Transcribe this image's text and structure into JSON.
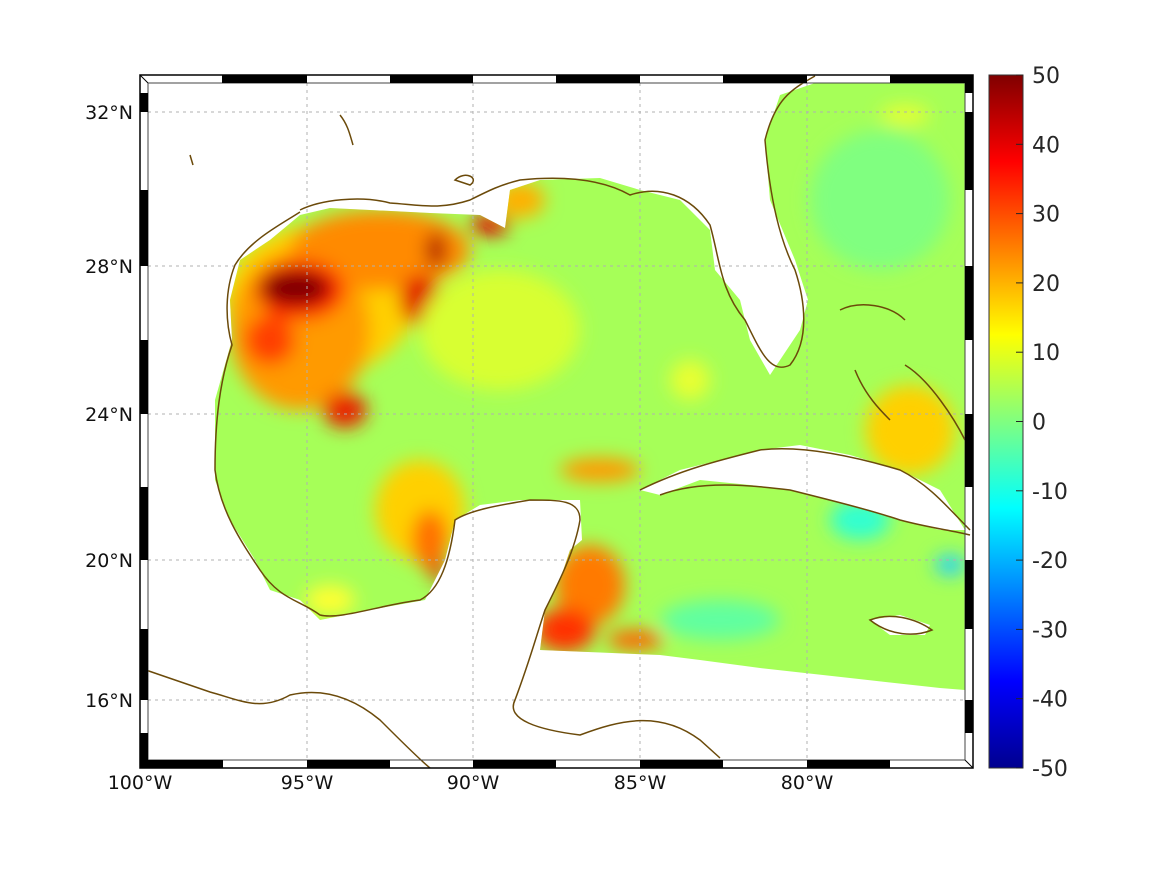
{
  "map": {
    "lon_labels": [
      "100°W",
      "95°W",
      "90°W",
      "85°W",
      "80°W"
    ],
    "lat_labels": [
      "32°N",
      "28°N",
      "24°N",
      "20°N",
      "16°N"
    ],
    "lon_range": [
      -100,
      -75
    ],
    "lat_range": [
      14.2,
      33
    ],
    "coastline_color": "#6b4a0a"
  },
  "colorbar": {
    "min": -50,
    "max": 50,
    "colormap": "jet",
    "tick_labels": [
      "50",
      "40",
      "30",
      "20",
      "10",
      "0",
      "-10",
      "-20",
      "-30",
      "-40",
      "-50"
    ]
  }
}
